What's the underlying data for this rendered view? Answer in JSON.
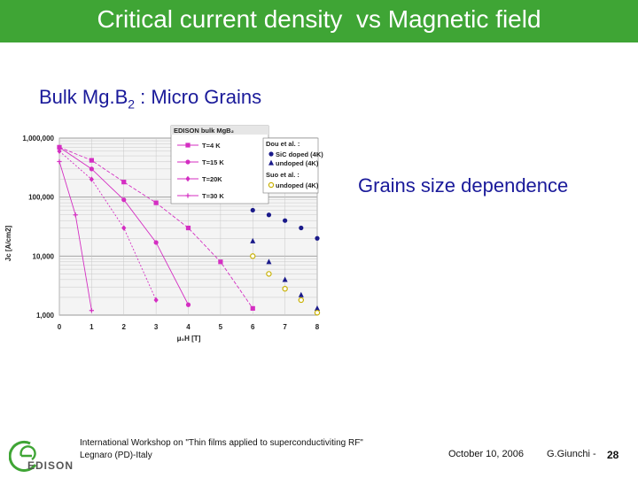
{
  "slide": {
    "title": "Critical current density  vs Magnetic field",
    "subtitle_main": "Bulk Mg.B",
    "subtitle_sub": "2",
    "subtitle_rest": " : Micro Grains",
    "annotation": "Grains size dependence",
    "colors": {
      "title_bar": "#3fa535",
      "text_accent": "#1a1a9a"
    }
  },
  "footer": {
    "workshop_line1": "International Workshop on \"Thin films applied to  superconductiviting RF\"",
    "workshop_line2": "Legnaro (PD)-Italy",
    "date": "October 10, 2006",
    "author": "G.Giunchi  -",
    "page": "28",
    "logo_text": "EDISON"
  },
  "chart_data": {
    "type": "scatter",
    "xlabel": "μ₀H [T]",
    "ylabel": "Jc [A/cm2]",
    "xlim": [
      0,
      8
    ],
    "ylim": [
      1000,
      1000000
    ],
    "yscale": "log",
    "x_ticks": [
      "0",
      "1",
      "2",
      "3",
      "4",
      "5",
      "6",
      "7",
      "8"
    ],
    "y_ticks": [
      "1,000",
      "10,000",
      "100,000",
      "1,000,000"
    ],
    "y_tick_values": [
      1000,
      10000,
      100000,
      1000000
    ],
    "grid": true,
    "legend_edison_title": "EDISON bulk MgB₂",
    "legend_literature_title_1": "Dou et al. :",
    "legend_literature_title_2": "Suo et al. :",
    "series": [
      {
        "name": "T=4 K",
        "color": "#d42ec2",
        "marker": "square",
        "x": [
          0.0,
          1.0,
          2.0,
          3.0,
          4.0,
          5.0,
          6.0
        ],
        "y": [
          700000,
          420000,
          180000,
          80000,
          30000,
          8000,
          1300
        ]
      },
      {
        "name": "T=15 K",
        "color": "#d42ec2",
        "marker": "circle",
        "x": [
          0.0,
          1.0,
          2.0,
          3.0,
          4.0
        ],
        "y": [
          700000,
          300000,
          90000,
          17000,
          1500
        ]
      },
      {
        "name": "T=20K",
        "color": "#d42ec2",
        "marker": "diamond",
        "x": [
          0.0,
          1.0,
          2.0,
          3.0
        ],
        "y": [
          600000,
          200000,
          30000,
          1800
        ]
      },
      {
        "name": "T=30 K",
        "color": "#d42ec2",
        "marker": "plus",
        "x": [
          0.0,
          0.5,
          1.0
        ],
        "y": [
          400000,
          50000,
          1200
        ]
      },
      {
        "name": "SiC doped (4K)",
        "color": "#1a1a8a",
        "marker": "circle",
        "x": [
          6.0,
          6.5,
          7.0,
          7.5,
          8.0
        ],
        "y": [
          60000,
          50000,
          40000,
          30000,
          20000
        ]
      },
      {
        "name": "undoped  (4K)",
        "color": "#1a1a8a",
        "marker": "triangle",
        "x": [
          6.0,
          6.5,
          7.0,
          7.5,
          8.0
        ],
        "y": [
          18000,
          8000,
          4000,
          2200,
          1300
        ]
      },
      {
        "name": "undoped  (4K)",
        "color": "#c8b000",
        "marker": "circle-open",
        "x": [
          6.0,
          6.5,
          7.0,
          7.5,
          8.0
        ],
        "y": [
          10000,
          5000,
          2800,
          1800,
          1100
        ]
      }
    ]
  }
}
